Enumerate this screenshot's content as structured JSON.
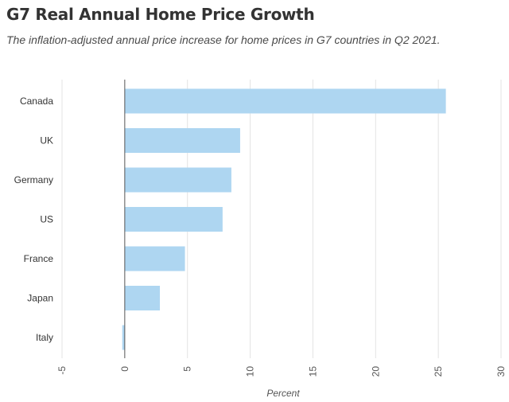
{
  "chart_data": {
    "type": "bar",
    "orientation": "horizontal",
    "title": "G7 Real Annual Home Price Growth",
    "subtitle": "The inflation-adjusted annual price increase for home prices in G7 countries in Q2 2021.",
    "xlabel": "Percent",
    "ylabel": "",
    "categories": [
      "Canada",
      "UK",
      "Germany",
      "US",
      "France",
      "Japan",
      "Italy"
    ],
    "values": [
      25.6,
      9.2,
      8.5,
      7.8,
      4.8,
      2.8,
      -0.2
    ],
    "xlim": [
      -5,
      30
    ],
    "xticks": [
      "-5",
      "0",
      "5",
      "10",
      "15",
      "20",
      "25",
      "30"
    ],
    "grid": true,
    "bar_color": "#aed6f1",
    "grid_color": "#e3e3e3",
    "zero_line_color": "#555555"
  }
}
